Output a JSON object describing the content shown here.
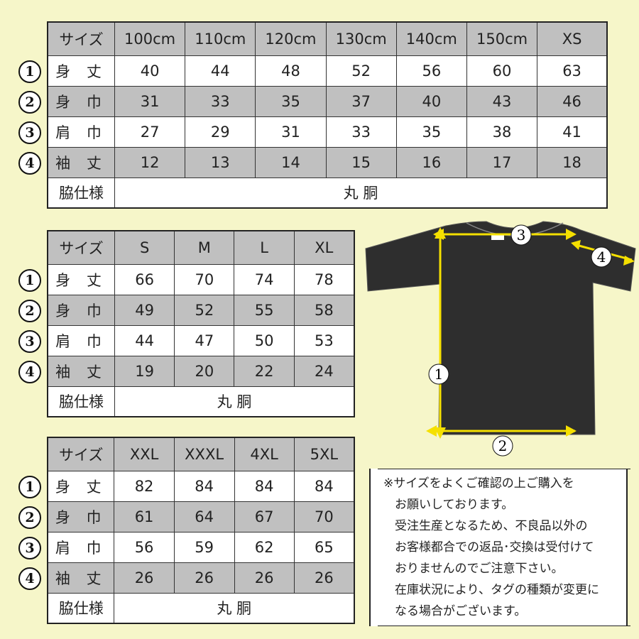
{
  "tables": [
    {
      "header": [
        "サイズ",
        "100cm",
        "110cm",
        "120cm",
        "130cm",
        "140cm",
        "150cm",
        "XS"
      ],
      "rows": [
        {
          "num": "1",
          "label": "身 丈",
          "values": [
            "40",
            "44",
            "48",
            "52",
            "56",
            "60",
            "63"
          ]
        },
        {
          "num": "2",
          "label": "身 巾",
          "values": [
            "31",
            "33",
            "35",
            "37",
            "40",
            "43",
            "46"
          ]
        },
        {
          "num": "3",
          "label": "肩 巾",
          "values": [
            "27",
            "29",
            "31",
            "33",
            "35",
            "38",
            "41"
          ]
        },
        {
          "num": "4",
          "label": "袖 丈",
          "values": [
            "12",
            "13",
            "14",
            "15",
            "16",
            "17",
            "18"
          ]
        }
      ],
      "side": {
        "label": "脇仕様",
        "value": "丸 胴"
      }
    },
    {
      "header": [
        "サイズ",
        "S",
        "M",
        "L",
        "XL"
      ],
      "rows": [
        {
          "num": "1",
          "label": "身 丈",
          "values": [
            "66",
            "70",
            "74",
            "78"
          ]
        },
        {
          "num": "2",
          "label": "身 巾",
          "values": [
            "49",
            "52",
            "55",
            "58"
          ]
        },
        {
          "num": "3",
          "label": "肩 巾",
          "values": [
            "44",
            "47",
            "50",
            "53"
          ]
        },
        {
          "num": "4",
          "label": "袖 丈",
          "values": [
            "19",
            "20",
            "22",
            "24"
          ]
        }
      ],
      "side": {
        "label": "脇仕様",
        "value": "丸 胴"
      }
    },
    {
      "header": [
        "サイズ",
        "XXL",
        "XXXL",
        "4XL",
        "5XL"
      ],
      "rows": [
        {
          "num": "1",
          "label": "身 丈",
          "values": [
            "82",
            "84",
            "84",
            "84"
          ]
        },
        {
          "num": "2",
          "label": "身 巾",
          "values": [
            "61",
            "64",
            "67",
            "70"
          ]
        },
        {
          "num": "3",
          "label": "肩 巾",
          "values": [
            "56",
            "59",
            "62",
            "65"
          ]
        },
        {
          "num": "4",
          "label": "袖 丈",
          "values": [
            "26",
            "26",
            "26",
            "26"
          ]
        }
      ],
      "side": {
        "label": "脇仕様",
        "value": "丸 胴"
      }
    }
  ],
  "diagram": {
    "markers": [
      "1",
      "2",
      "3",
      "4"
    ],
    "shirt_color": "#2e2e2e",
    "arrow_color": "#f5e000"
  },
  "note": {
    "lines": [
      "※サイズをよくご確認の上ご購入を",
      "お願いしております。",
      "受注生産となるため、不良品以外の",
      "お客様都合での返品･交換は受付けて",
      "おりませんのでご注意下さい。",
      "在庫状況により、タグの種類が変更に",
      "なる場合がございます。"
    ]
  },
  "colors": {
    "background": "#f6f6c9",
    "shaded_row": "#c0c0c0"
  }
}
